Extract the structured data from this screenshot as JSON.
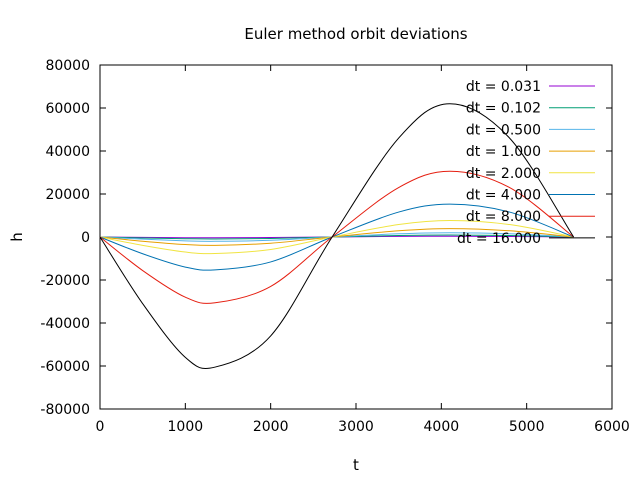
{
  "chart_data": {
    "type": "line",
    "title": "Euler method orbit deviations",
    "xlabel": "t",
    "ylabel": "h",
    "xlim": [
      0,
      6000
    ],
    "ylim": [
      -80000,
      80000
    ],
    "xticks": [
      0,
      1000,
      2000,
      3000,
      4000,
      5000,
      6000
    ],
    "yticks": [
      -80000,
      -60000,
      -40000,
      -20000,
      0,
      20000,
      40000,
      60000,
      80000
    ],
    "grid": false,
    "legend_position": "top-right",
    "series": [
      {
        "name": "dt = 0.031",
        "color": "#9400d3",
        "x": [
          0,
          500,
          1000,
          1350,
          2000,
          2720,
          3500,
          4100,
          4800,
          5550
        ],
        "y": [
          0,
          -180,
          -320,
          -350,
          -260,
          0,
          280,
          350,
          260,
          0
        ]
      },
      {
        "name": "dt = 0.102",
        "color": "#009e73",
        "x": [
          0,
          500,
          1000,
          1350,
          2000,
          2720,
          3500,
          4100,
          4800,
          5550
        ],
        "y": [
          0,
          -450,
          -800,
          -900,
          -680,
          0,
          700,
          900,
          680,
          0
        ]
      },
      {
        "name": "dt = 0.500",
        "color": "#56b4e9",
        "x": [
          0,
          500,
          1000,
          1350,
          2000,
          2720,
          3500,
          4100,
          4800,
          5550
        ],
        "y": [
          0,
          -1000,
          -1800,
          -2000,
          -1500,
          0,
          1500,
          2000,
          1500,
          0
        ]
      },
      {
        "name": "dt = 1.000",
        "color": "#e69f00",
        "x": [
          0,
          500,
          1000,
          1350,
          2000,
          2720,
          3500,
          4100,
          4800,
          5550
        ],
        "y": [
          0,
          -1950,
          -3500,
          -3900,
          -2900,
          0,
          2900,
          3900,
          2900,
          0
        ]
      },
      {
        "name": "dt = 2.000",
        "color": "#f0e442",
        "x": [
          0,
          500,
          1000,
          1350,
          2000,
          2720,
          3500,
          4100,
          4800,
          5550
        ],
        "y": [
          0,
          -3900,
          -7000,
          -7700,
          -5800,
          0,
          5800,
          7700,
          5800,
          0
        ]
      },
      {
        "name": "dt = 4.000",
        "color": "#0072b2",
        "x": [
          0,
          500,
          1000,
          1350,
          2000,
          2720,
          3500,
          4100,
          4800,
          5550
        ],
        "y": [
          0,
          -7800,
          -14000,
          -15300,
          -11600,
          0,
          11600,
          15300,
          11600,
          0
        ]
      },
      {
        "name": "dt = 8.000",
        "color": "#e51e10",
        "x": [
          0,
          500,
          1000,
          1350,
          2000,
          2720,
          3500,
          4100,
          4800,
          5550
        ],
        "y": [
          0,
          -15600,
          -28000,
          -30600,
          -23000,
          0,
          23000,
          30600,
          23000,
          0
        ]
      },
      {
        "name": "dt = 16.000",
        "color": "#000000",
        "x": [
          0,
          500,
          1000,
          1350,
          2000,
          2720,
          3500,
          4100,
          4800,
          5550
        ],
        "y": [
          0,
          -31000,
          -56000,
          -60500,
          -46000,
          0,
          46000,
          62000,
          46000,
          0
        ]
      }
    ]
  }
}
